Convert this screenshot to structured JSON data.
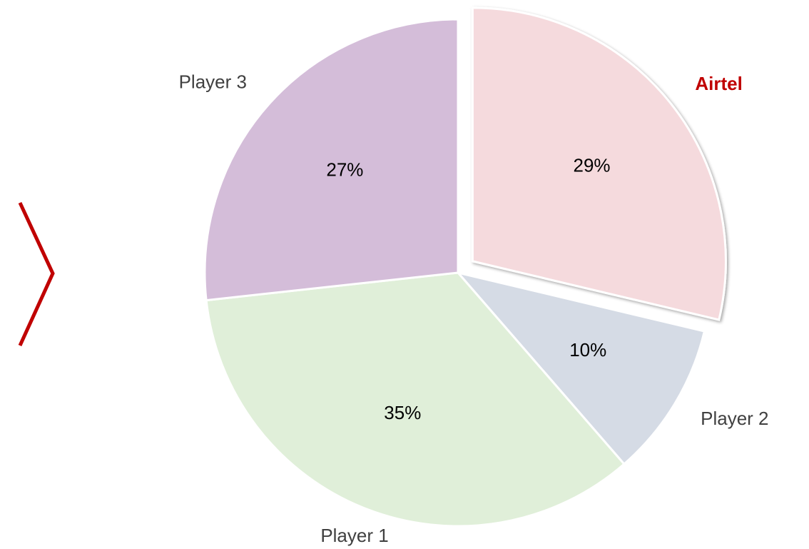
{
  "chart_data": {
    "type": "pie",
    "categories": [
      "Airtel",
      "Player 2",
      "Player 1",
      "Player 3"
    ],
    "values": [
      29,
      10,
      35,
      27
    ],
    "value_labels": [
      "29%",
      "10%",
      "35%",
      "27%"
    ],
    "colors": [
      "#f5dadd",
      "#d5dbe5",
      "#e0efd9",
      "#d4bdd9"
    ],
    "exploded": [
      true,
      false,
      false,
      false
    ],
    "label_colors": [
      "#c00000",
      "#404040",
      "#404040",
      "#404040"
    ]
  }
}
